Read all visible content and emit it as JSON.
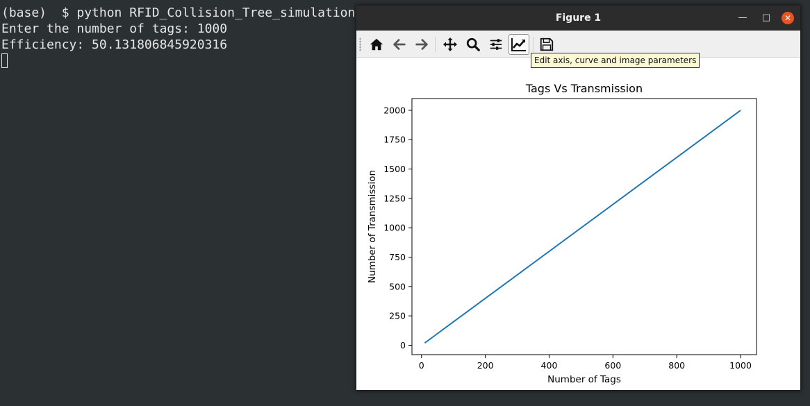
{
  "terminal": {
    "lines": [
      "(base)  $ python RFID_Collision_Tree_simulation.py",
      "Enter the number of tags: 1000",
      "Efficiency: 50.131806845920316"
    ]
  },
  "window": {
    "title": "Figure 1",
    "minimize_glyph": "—",
    "maximize_glyph": "□",
    "close_glyph": "✕"
  },
  "toolbar": {
    "buttons": [
      {
        "icon": "home-icon"
      },
      {
        "icon": "back-arrow-icon"
      },
      {
        "icon": "forward-arrow-icon"
      },
      {
        "icon": "pan-icon"
      },
      {
        "icon": "zoom-icon"
      },
      {
        "icon": "configure-subplots-icon"
      },
      {
        "icon": "edit-axis-icon",
        "active": true
      },
      {
        "icon": "save-icon"
      }
    ],
    "tooltip": "Edit axis, curve and image parameters"
  },
  "chart_data": {
    "type": "line",
    "title": "Tags Vs Transmission",
    "xlabel": "Number of Tags",
    "ylabel": "Number of Transmission",
    "xlim": [
      -30,
      1050
    ],
    "ylim": [
      -80,
      2100
    ],
    "xticks": [
      0,
      200,
      400,
      600,
      800,
      1000
    ],
    "yticks": [
      0,
      250,
      500,
      750,
      1000,
      1250,
      1500,
      1750,
      2000
    ],
    "series": [
      {
        "color": "#1f77b4",
        "x": [
          10,
          1000
        ],
        "y": [
          19,
          1999
        ]
      }
    ],
    "grid": false
  }
}
